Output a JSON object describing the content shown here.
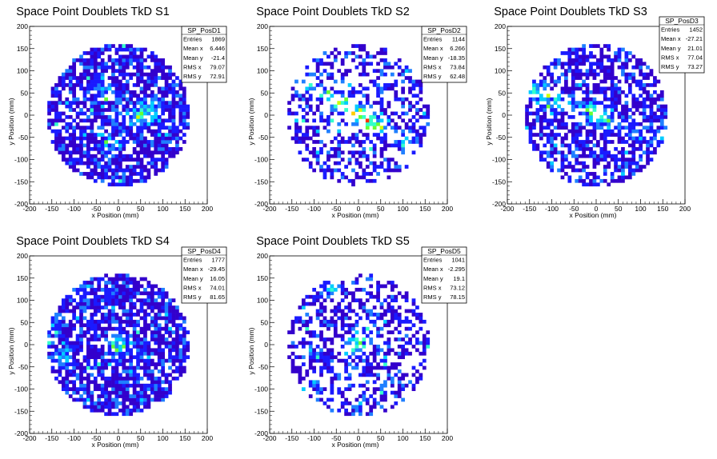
{
  "chart_data": [
    {
      "type": "heatmap",
      "title": "Space Point Doublets TkD S1",
      "xlabel": "x Position (mm)",
      "ylabel": "y Position (mm)",
      "xlim": [
        -200,
        200
      ],
      "ylim": [
        -200,
        200
      ],
      "xticks": [
        "-200",
        "-150",
        "-100",
        "-50",
        "0",
        "50",
        "100",
        "150",
        "200"
      ],
      "yticks": [
        "-200",
        "-150",
        "-100",
        "-50",
        "0",
        "50",
        "100",
        "150",
        "200"
      ],
      "radius": 160,
      "bins": 50,
      "occupancy": 0.75,
      "seed": 11,
      "hotspots": [
        [
          70,
          10,
          3
        ],
        [
          -40,
          60,
          1.8
        ],
        [
          40,
          -10,
          1.5
        ],
        [
          -20,
          -70,
          1.5
        ]
      ],
      "band": null,
      "stats": {
        "name": "SP_PosD1",
        "rows": [
          {
            "label": "Entries",
            "value": "1869"
          },
          {
            "label": "Mean x",
            "value": "6.446"
          },
          {
            "label": "Mean y",
            "value": "-21.4"
          },
          {
            "label": "RMS x",
            "value": "79.07"
          },
          {
            "label": "RMS y",
            "value": "72.91"
          }
        ]
      }
    },
    {
      "type": "heatmap",
      "title": "Space Point Doublets TkD S2",
      "xlabel": "x Position (mm)",
      "ylabel": "y Position (mm)",
      "xlim": [
        -200,
        200
      ],
      "ylim": [
        -200,
        200
      ],
      "xticks": [
        "-200",
        "-150",
        "-100",
        "-50",
        "0",
        "50",
        "100",
        "150",
        "200"
      ],
      "yticks": [
        "-200",
        "-150",
        "-100",
        "-50",
        "0",
        "50",
        "100",
        "150",
        "200"
      ],
      "radius": 160,
      "bins": 50,
      "occupancy": 0.42,
      "seed": 23,
      "hotspots": [
        [
          10,
          0,
          3.2
        ],
        [
          -40,
          30,
          2.2
        ],
        [
          40,
          -20,
          1.8
        ]
      ],
      "band": {
        "slope": -0.6,
        "width": 22,
        "strength": 2.2
      },
      "stats": {
        "name": "SP_PosD2",
        "rows": [
          {
            "label": "Entries",
            "value": "1144"
          },
          {
            "label": "Mean x",
            "value": "6.266"
          },
          {
            "label": "Mean y",
            "value": "-18.35"
          },
          {
            "label": "RMS x",
            "value": "73.84"
          },
          {
            "label": "RMS y",
            "value": "62.48"
          }
        ]
      }
    },
    {
      "type": "heatmap",
      "title": "Space Point Doublets TkD S3",
      "xlabel": "x Position (mm)",
      "ylabel": "y Position (mm)",
      "xlim": [
        -200,
        200
      ],
      "ylim": [
        -200,
        200
      ],
      "xticks": [
        "-200",
        "-150",
        "-100",
        "-50",
        "0",
        "50",
        "100",
        "150",
        "200"
      ],
      "yticks": [
        "-200",
        "-150",
        "-100",
        "-50",
        "0",
        "50",
        "100",
        "150",
        "200"
      ],
      "radius": 160,
      "bins": 50,
      "occupancy": 0.62,
      "seed": 37,
      "hotspots": [
        [
          5,
          5,
          3
        ],
        [
          -140,
          60,
          1.8
        ],
        [
          -100,
          20,
          1.3
        ]
      ],
      "band": {
        "slope": -0.4,
        "width": 28,
        "strength": 1.4
      },
      "stats": {
        "name": "SP_PosD3",
        "rows": [
          {
            "label": "Entries",
            "value": "1452"
          },
          {
            "label": "Mean x",
            "value": "-27.21"
          },
          {
            "label": "Mean y",
            "value": "21.01"
          },
          {
            "label": "RMS x",
            "value": "77.04"
          },
          {
            "label": "RMS y",
            "value": "73.27"
          }
        ]
      }
    },
    {
      "type": "heatmap",
      "title": "Space Point Doublets TkD S4",
      "xlabel": "x Position (mm)",
      "ylabel": "y Position (mm)",
      "xlim": [
        -200,
        200
      ],
      "ylim": [
        -200,
        200
      ],
      "xticks": [
        "-200",
        "-150",
        "-100",
        "-50",
        "0",
        "50",
        "100",
        "150",
        "200"
      ],
      "yticks": [
        "-200",
        "-150",
        "-100",
        "-50",
        "0",
        "50",
        "100",
        "150",
        "200"
      ],
      "radius": 160,
      "bins": 50,
      "occupancy": 0.78,
      "seed": 41,
      "hotspots": [
        [
          0,
          0,
          3
        ],
        [
          -130,
          -30,
          1.8
        ],
        [
          -90,
          120,
          1.5
        ],
        [
          -150,
          40,
          1.3
        ]
      ],
      "band": null,
      "stats": {
        "name": "SP_PosD4",
        "rows": [
          {
            "label": "Entries",
            "value": "1777"
          },
          {
            "label": "Mean x",
            "value": "-29.45"
          },
          {
            "label": "Mean y",
            "value": "16.05"
          },
          {
            "label": "RMS x",
            "value": "74.01"
          },
          {
            "label": "RMS y",
            "value": "81.65"
          }
        ]
      }
    },
    {
      "type": "heatmap",
      "title": "Space Point Doublets TkD S5",
      "xlabel": "x Position (mm)",
      "ylabel": "y Position (mm)",
      "xlim": [
        -200,
        200
      ],
      "ylim": [
        -200,
        200
      ],
      "xticks": [
        "-200",
        "-150",
        "-100",
        "-50",
        "0",
        "50",
        "100",
        "150",
        "200"
      ],
      "yticks": [
        "-200",
        "-150",
        "-100",
        "-50",
        "0",
        "50",
        "100",
        "150",
        "200"
      ],
      "radius": 160,
      "bins": 50,
      "occupancy": 0.45,
      "seed": 53,
      "hotspots": [
        [
          -5,
          0,
          3.2
        ],
        [
          20,
          40,
          1.6
        ],
        [
          -60,
          130,
          1.6
        ]
      ],
      "band": null,
      "stats": {
        "name": "SP_PosD5",
        "rows": [
          {
            "label": "Entries",
            "value": "1041"
          },
          {
            "label": "Mean x",
            "value": "-2.295"
          },
          {
            "label": "Mean y",
            "value": "19.1"
          },
          {
            "label": "RMS x",
            "value": "73.12"
          },
          {
            "label": "RMS y",
            "value": "78.15"
          }
        ]
      }
    }
  ],
  "colors": {
    "palette": [
      "#3300cc",
      "#1a1aff",
      "#1f7fff",
      "#00ccff",
      "#33ffcc",
      "#66ff33",
      "#ccff00",
      "#ffcc00",
      "#ff3300"
    ],
    "frame": "#000000"
  }
}
